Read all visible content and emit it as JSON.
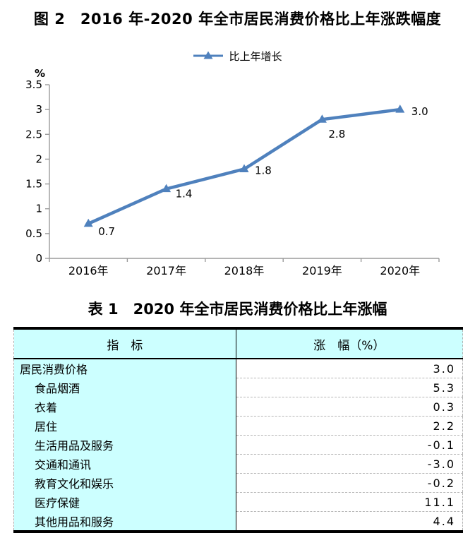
{
  "figure": {
    "title": "图 2　2016 年-2020 年全市居民消费价格比上年涨跌幅度",
    "legend_label": "比上年增长",
    "line_color": "#4f81bd",
    "axis_color": "#9b9b9b"
  },
  "chart_data": {
    "type": "line",
    "title": "图 2　2016 年-2020 年全市居民消费价格比上年涨跌幅度",
    "categories": [
      "2016年",
      "2017年",
      "2018年",
      "2019年",
      "2020年"
    ],
    "series": [
      {
        "name": "比上年增长",
        "values": [
          0.7,
          1.4,
          1.8,
          2.8,
          3.0
        ]
      }
    ],
    "data_labels": [
      "0.7",
      "1.4",
      "1.8",
      "2.8",
      "3.0"
    ],
    "xlabel": "",
    "ylabel": "%",
    "ylim": [
      0,
      3.5
    ],
    "ytick_step": 0.5,
    "yticks": [
      "0",
      "0.5",
      "1",
      "1.5",
      "2",
      "2.5",
      "3",
      "3.5"
    ],
    "grid": false,
    "legend_position": "top",
    "marker": "triangle-up",
    "line_color": "#4f81bd"
  },
  "table": {
    "title": "表 1　2020 年全市居民消费价格比上年涨幅",
    "columns": [
      "指　标",
      "涨　幅（%）"
    ],
    "header_bg": "#ccffff",
    "left_column_bg": "#ccffff",
    "rows": [
      {
        "indicator": "居民消费价格",
        "value": "3.0",
        "indent": 0
      },
      {
        "indicator": "食品烟酒",
        "value": "5.3",
        "indent": 1
      },
      {
        "indicator": "衣着",
        "value": "0.3",
        "indent": 1
      },
      {
        "indicator": "居住",
        "value": "2.2",
        "indent": 1
      },
      {
        "indicator": "生活用品及服务",
        "value": "-0.1",
        "indent": 1
      },
      {
        "indicator": "交通和通讯",
        "value": "-3.0",
        "indent": 1
      },
      {
        "indicator": "教育文化和娱乐",
        "value": "-0.2",
        "indent": 1
      },
      {
        "indicator": "医疗保健",
        "value": "11.1",
        "indent": 1
      },
      {
        "indicator": "其他用品和服务",
        "value": "4.4",
        "indent": 1
      }
    ]
  }
}
